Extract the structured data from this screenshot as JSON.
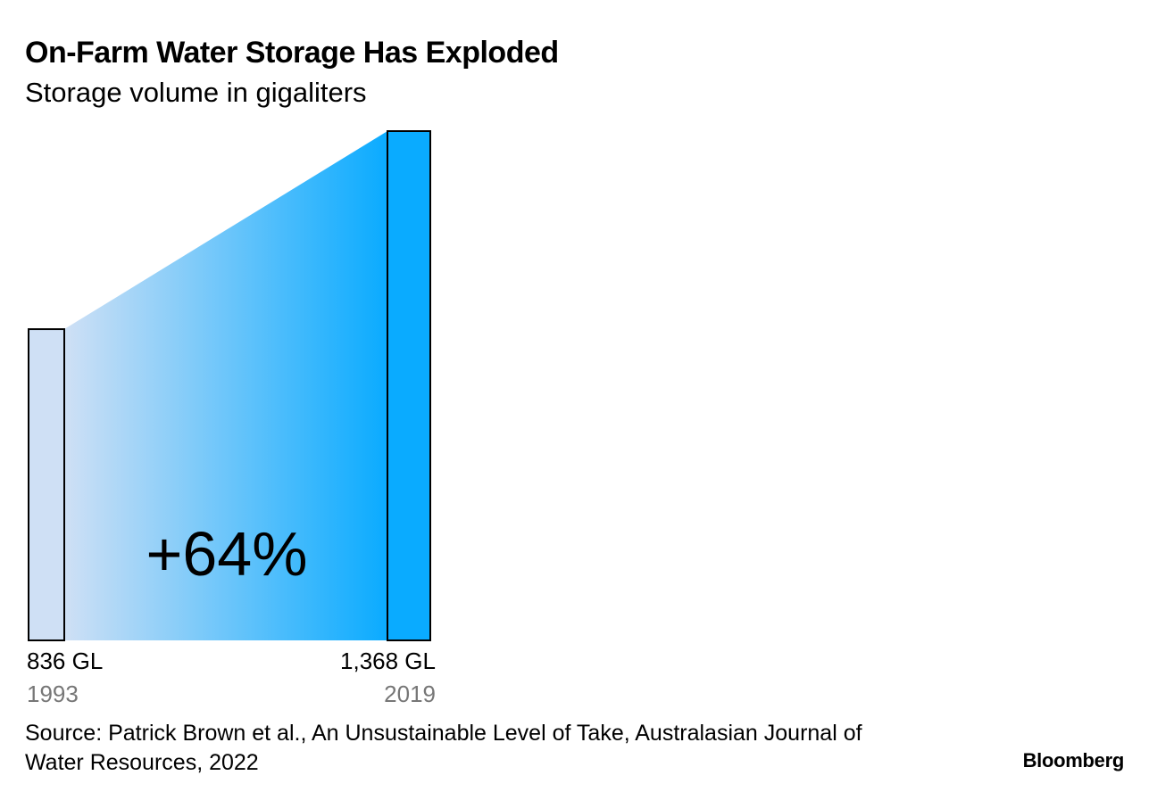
{
  "header": {
    "title": "On-Farm Water Storage Has Exploded",
    "subtitle": "Storage volume in gigaliters"
  },
  "chart_data": {
    "type": "bar",
    "categories": [
      "1993",
      "2019"
    ],
    "values": [
      836,
      1368
    ],
    "value_labels": [
      "836 GL",
      "1,368 GL"
    ],
    "unit": "GL",
    "annotation": "+64%",
    "ylim": [
      0,
      1368
    ],
    "grid": false,
    "colors": {
      "start_bar": "#cfe0f5",
      "end_bar": "#0aabff",
      "gradient_start": "#cfe0f5",
      "gradient_end": "#0aabff",
      "outline": "#000000",
      "year_label": "#777777"
    }
  },
  "footer": {
    "source": "Source: Patrick Brown et al., An Unsustainable Level of Take, Australasian Journal of Water Resources, 2022",
    "brand": "Bloomberg"
  }
}
